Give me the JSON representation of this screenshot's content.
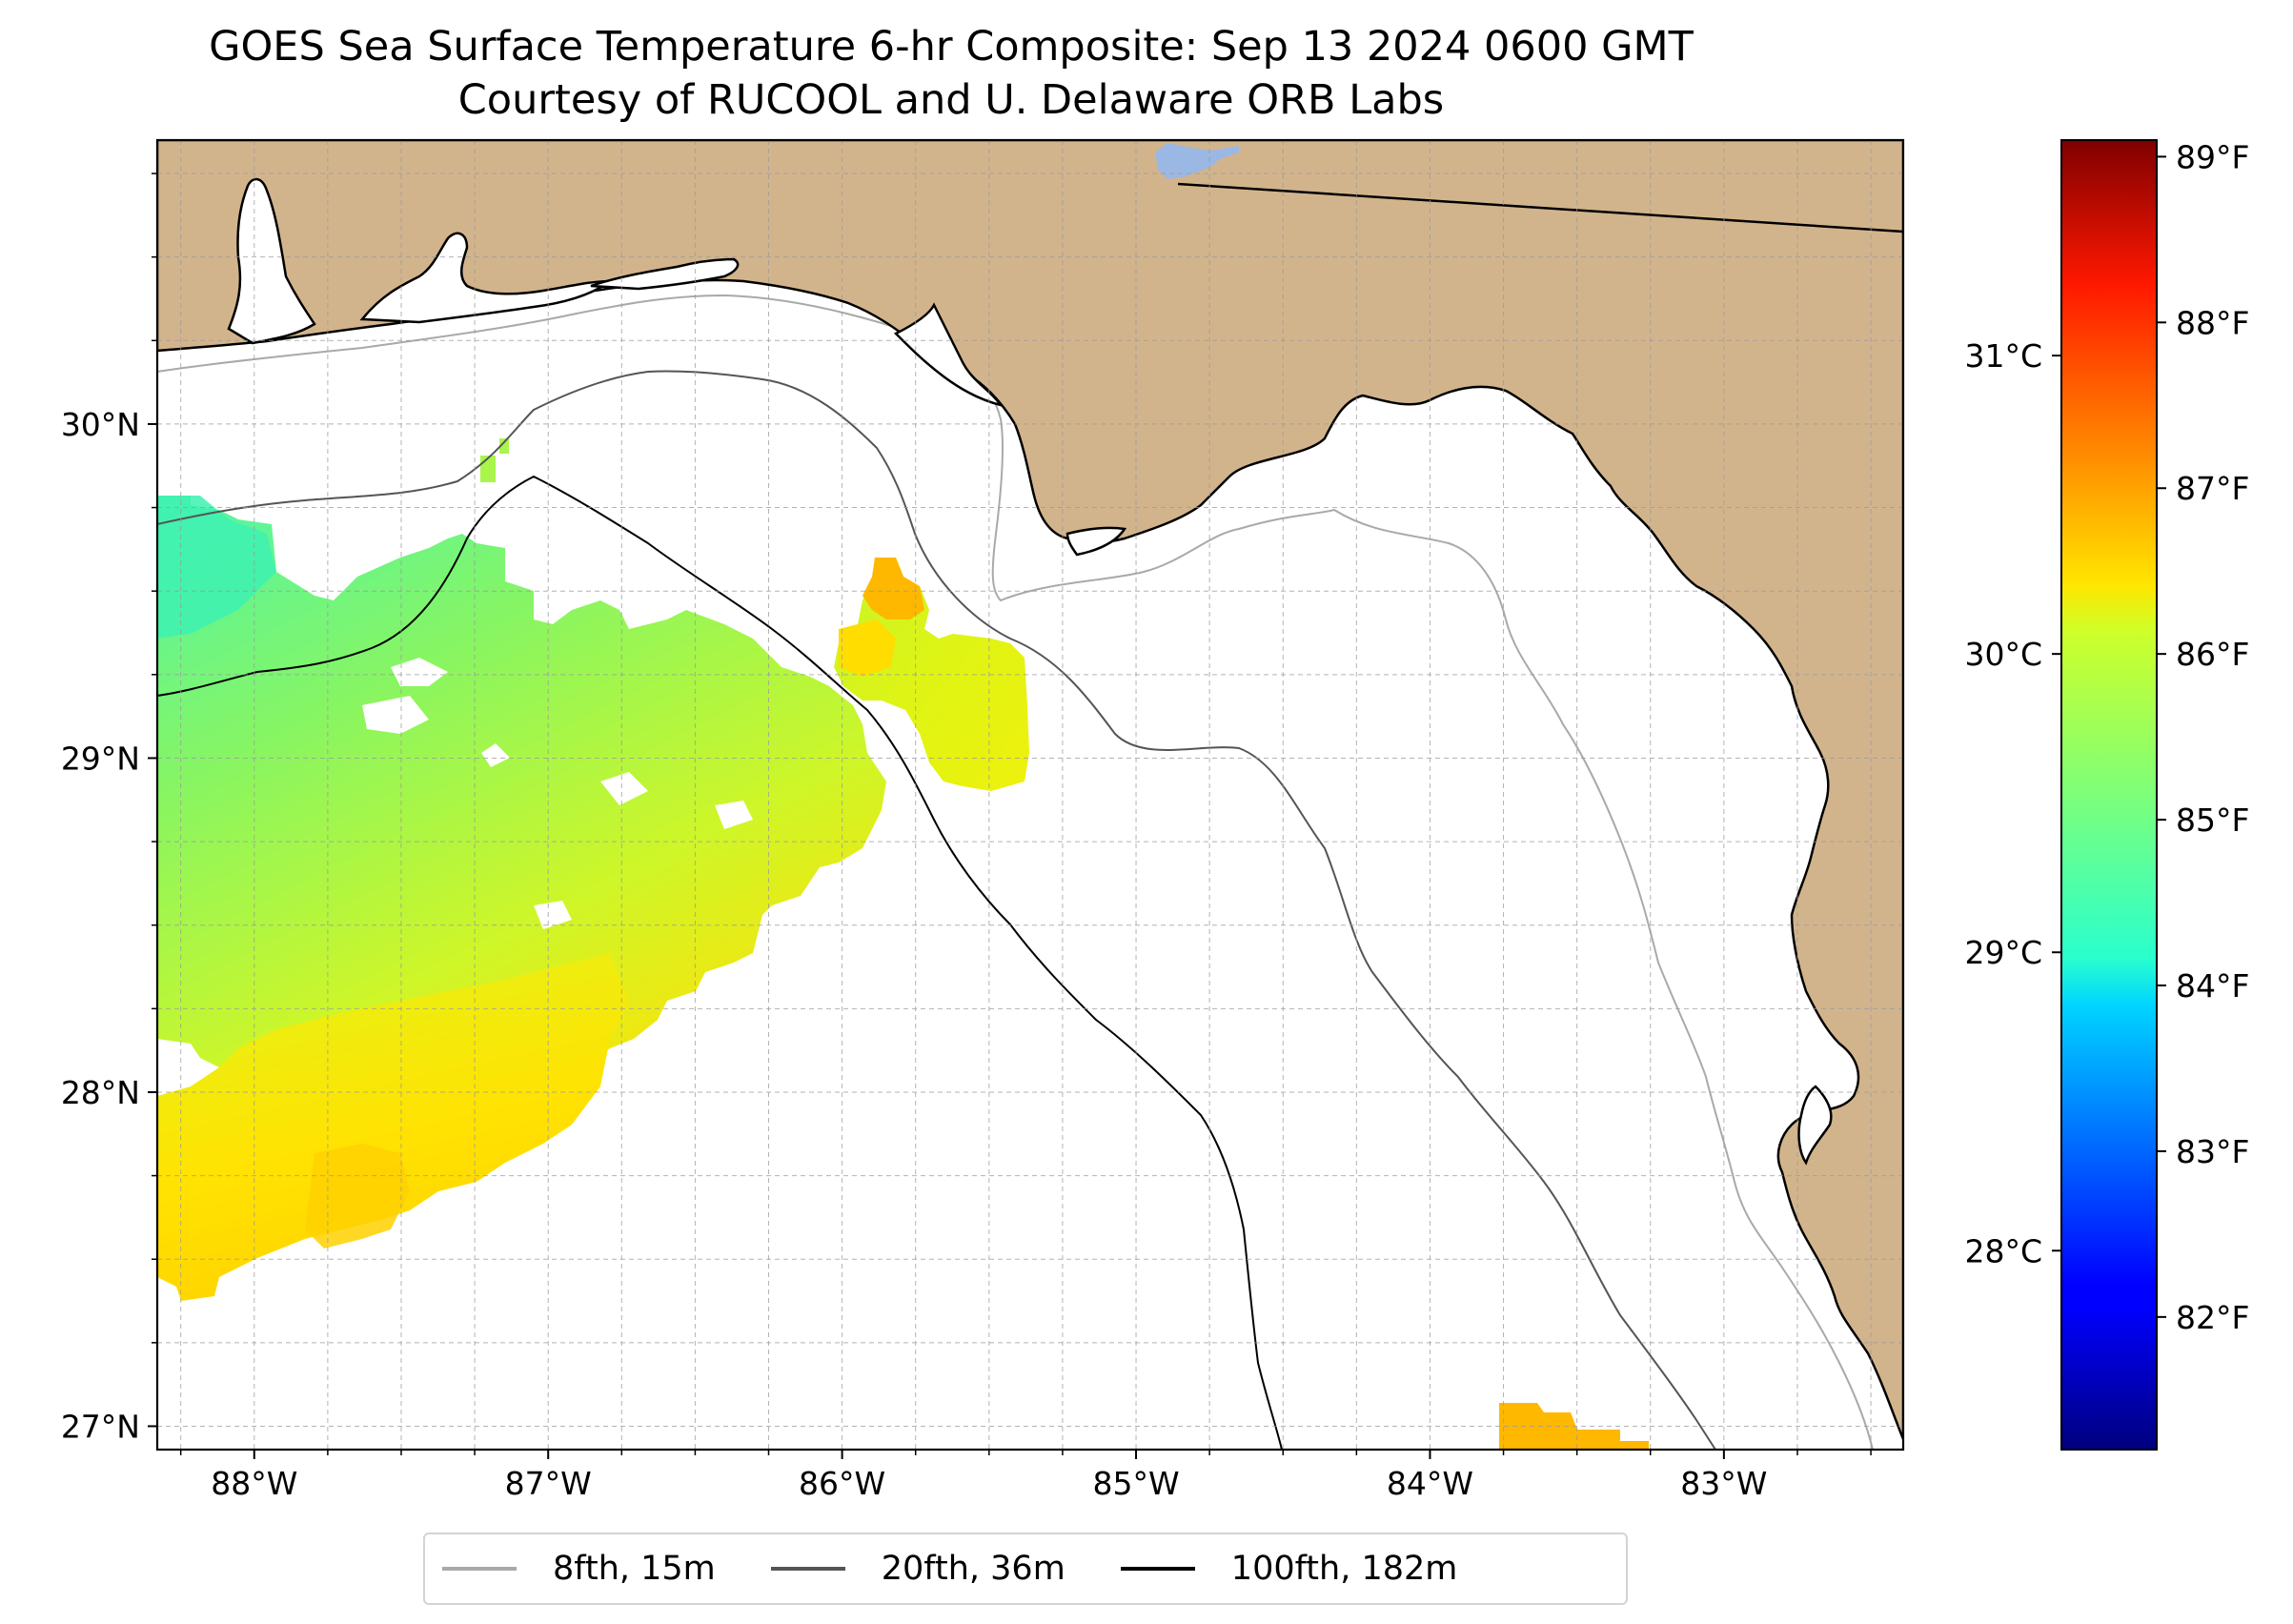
{
  "title": {
    "line1": "GOES Sea Surface Temperature 6-hr Composite: Sep 13 2024 0600 GMT",
    "line2": "Courtesy of RUCOOL and U. Delaware ORB Labs"
  },
  "map": {
    "extent": {
      "lon_min": -88.33,
      "lon_max": -82.39,
      "lat_min": 26.93,
      "lat_max": 30.85
    },
    "lon_ticks": [
      {
        "value": -88,
        "label": "88°W"
      },
      {
        "value": -87,
        "label": "87°W"
      },
      {
        "value": -86,
        "label": "86°W"
      },
      {
        "value": -85,
        "label": "85°W"
      },
      {
        "value": -84,
        "label": "84°W"
      },
      {
        "value": -83,
        "label": "83°W"
      }
    ],
    "lat_ticks": [
      {
        "value": 27,
        "label": "27°N"
      },
      {
        "value": 28,
        "label": "28°N"
      },
      {
        "value": 29,
        "label": "29°N"
      },
      {
        "value": 30,
        "label": "30°N"
      }
    ],
    "land_color": "#d2b48c",
    "water_color": "#ffffff",
    "lake_color": "#9bb7e4",
    "grid": true,
    "gridline_style": "dashed, gray"
  },
  "colorbar": {
    "colormap": "jet",
    "min_f": 81.2,
    "max_f": 89.1,
    "fahrenheit_ticks": [
      {
        "value": 82,
        "label": "82°F"
      },
      {
        "value": 83,
        "label": "83°F"
      },
      {
        "value": 84,
        "label": "84°F"
      },
      {
        "value": 85,
        "label": "85°F"
      },
      {
        "value": 86,
        "label": "86°F"
      },
      {
        "value": 87,
        "label": "87°F"
      },
      {
        "value": 88,
        "label": "88°F"
      },
      {
        "value": 89,
        "label": "89°F"
      }
    ],
    "celsius_ticks": [
      {
        "value": 28,
        "label": "28°C"
      },
      {
        "value": 29,
        "label": "29°C"
      },
      {
        "value": 30,
        "label": "30°C"
      },
      {
        "value": 31,
        "label": "31°C"
      }
    ]
  },
  "legend": {
    "items": [
      {
        "label": "8fth, 15m",
        "color": "#a9a9a9"
      },
      {
        "label": "20fth, 36m",
        "color": "#555555"
      },
      {
        "label": "100fth, 182m",
        "color": "#000000"
      }
    ]
  },
  "sst_patches": [
    {
      "name": "western-sst-patch",
      "temp_range_f": [
        84.0,
        86.3
      ]
    },
    {
      "name": "central-sst-patch",
      "temp_range_f": [
        85.8,
        86.9
      ]
    },
    {
      "name": "southern-sst-patch",
      "temp_range_f": [
        86.7,
        86.7
      ]
    }
  ]
}
